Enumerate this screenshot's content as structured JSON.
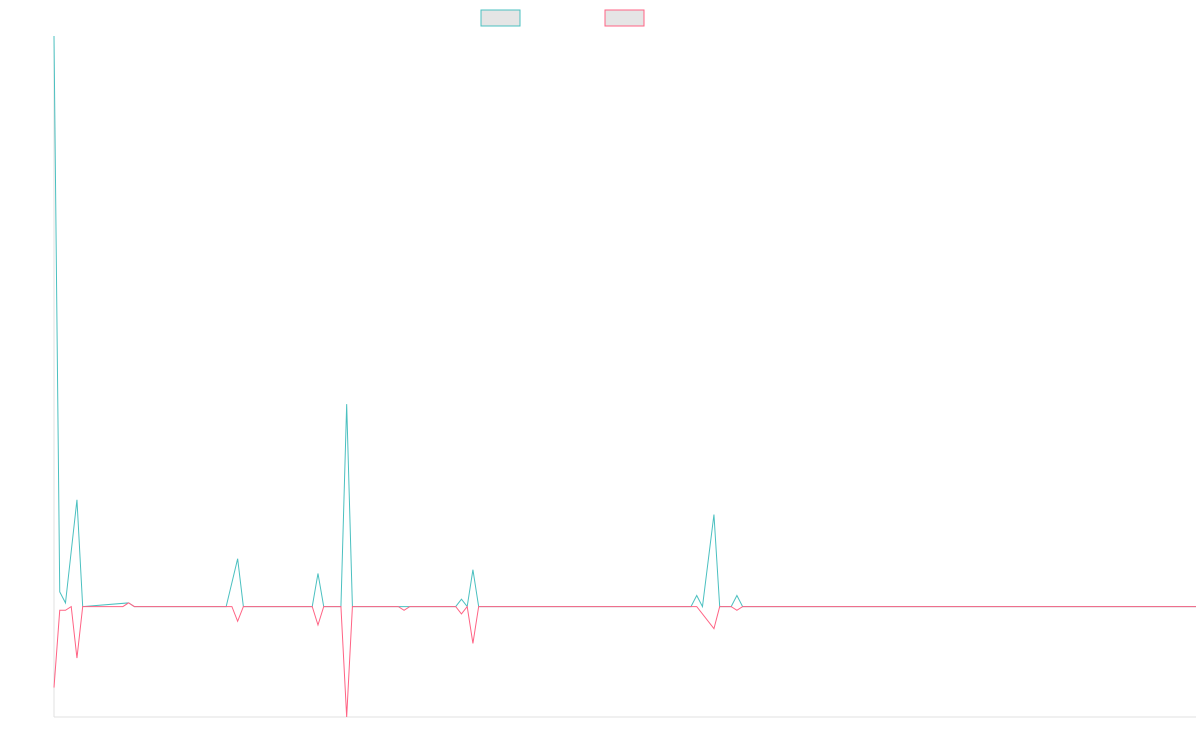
{
  "chart_data": {
    "type": "line",
    "title": "",
    "xlabel": "",
    "ylabel": "",
    "grid": false,
    "legend_position": "top-center",
    "x_count": 200,
    "ylim": [
      -30,
      155
    ],
    "colors": {
      "series_a": "#4BC0C0",
      "series_b": "#FF6384",
      "legend_fill": "#E5E5E5",
      "axis": "#E0E0E0"
    },
    "series": [
      {
        "name": "",
        "color": "#4BC0C0",
        "points": [
          [
            0,
            155
          ],
          [
            1,
            4
          ],
          [
            2,
            1
          ],
          [
            4,
            29
          ],
          [
            5,
            0
          ],
          [
            13,
            1
          ],
          [
            14,
            0
          ],
          [
            30,
            0
          ],
          [
            32,
            13
          ],
          [
            33,
            0
          ],
          [
            45,
            0
          ],
          [
            46,
            9
          ],
          [
            47,
            0
          ],
          [
            50,
            0
          ],
          [
            51,
            55
          ],
          [
            52,
            0
          ],
          [
            60,
            0
          ],
          [
            61,
            0
          ],
          [
            70,
            0
          ],
          [
            71,
            2
          ],
          [
            72,
            0
          ],
          [
            73,
            10
          ],
          [
            74,
            0
          ],
          [
            111,
            0
          ],
          [
            112,
            3
          ],
          [
            113,
            0
          ],
          [
            115,
            25
          ],
          [
            116,
            0
          ],
          [
            118,
            0
          ],
          [
            119,
            3
          ],
          [
            120,
            0
          ],
          [
            121,
            0
          ],
          [
            199,
            0
          ]
        ]
      },
      {
        "name": "",
        "color": "#FF6384",
        "points": [
          [
            0,
            -22
          ],
          [
            1,
            -1
          ],
          [
            2,
            -1
          ],
          [
            3,
            0
          ],
          [
            4,
            -14
          ],
          [
            5,
            0
          ],
          [
            12,
            0
          ],
          [
            13,
            1
          ],
          [
            14,
            0
          ],
          [
            30,
            0
          ],
          [
            31,
            0
          ],
          [
            32,
            -4
          ],
          [
            33,
            0
          ],
          [
            45,
            0
          ],
          [
            46,
            -5
          ],
          [
            47,
            0
          ],
          [
            50,
            0
          ],
          [
            51,
            -30
          ],
          [
            52,
            0
          ],
          [
            60,
            0
          ],
          [
            61,
            -1
          ],
          [
            62,
            0
          ],
          [
            70,
            0
          ],
          [
            71,
            -2
          ],
          [
            72,
            0
          ],
          [
            73,
            -10
          ],
          [
            74,
            0
          ],
          [
            111,
            0
          ],
          [
            112,
            0
          ],
          [
            115,
            -6
          ],
          [
            116,
            0
          ],
          [
            118,
            0
          ],
          [
            119,
            -1
          ],
          [
            120,
            0
          ],
          [
            121,
            0
          ],
          [
            199,
            0
          ]
        ]
      }
    ]
  }
}
